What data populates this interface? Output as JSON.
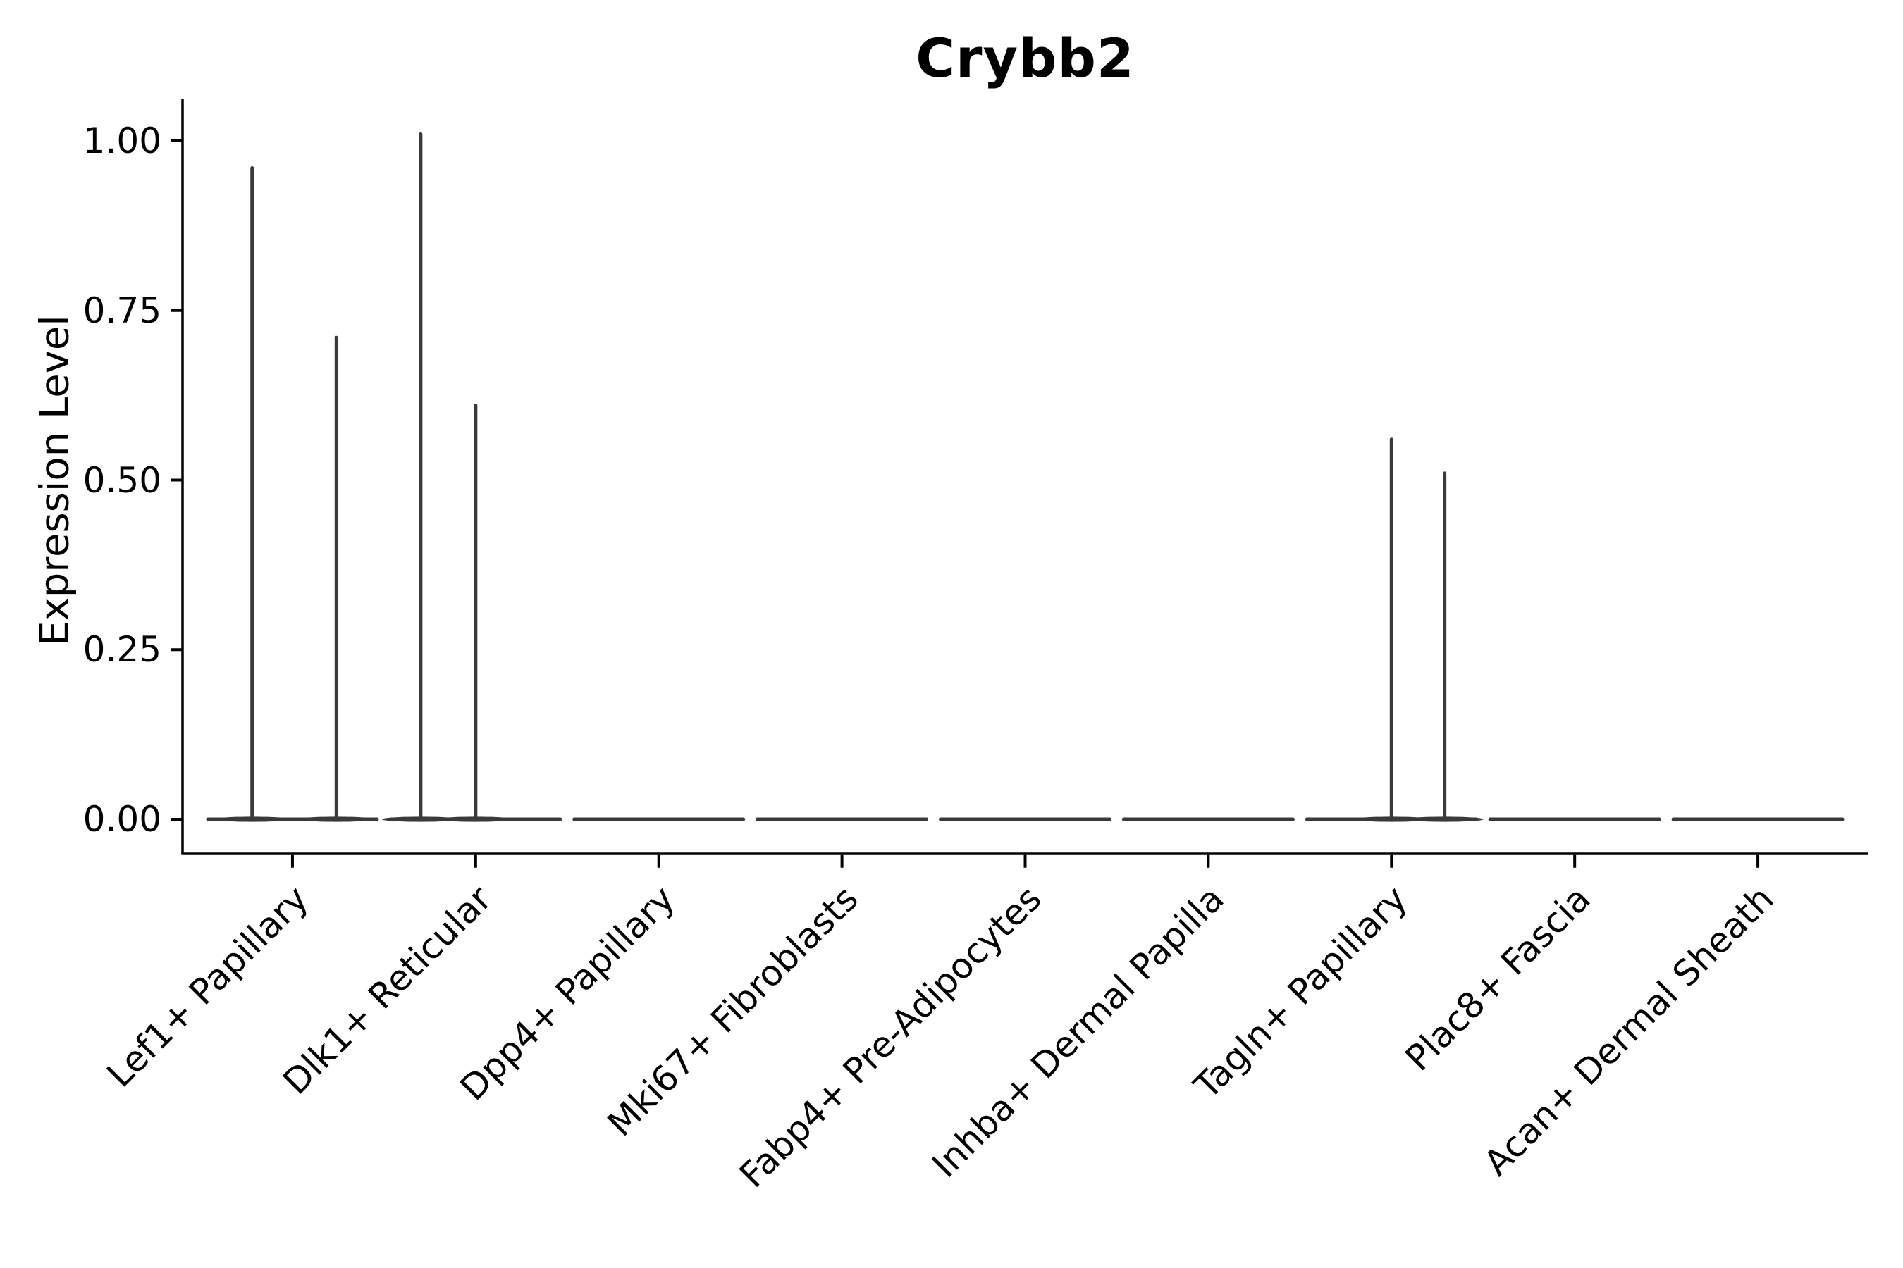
{
  "figure": {
    "title": "Crybb2",
    "y_axis_label": "Expression Level"
  },
  "chart_data": {
    "type": "violin",
    "title": "Crybb2",
    "xlabel": "",
    "ylabel": "Expression Level",
    "categories": [
      "Lef1+ Papillary",
      "Dlk1+ Reticular",
      "Dpp4+ Papillary",
      "Mki67+ Fibroblasts",
      "Fabp4+ Pre-Adipocytes",
      "Inhba+ Dermal Papilla",
      "Tagln+ Papillary",
      "Plac8+ Fascia",
      "Acan+ Dermal Sheath"
    ],
    "ytick_labels": [
      "0.00",
      "0.25",
      "0.50",
      "0.75",
      "1.00"
    ],
    "ytick_values": [
      0,
      0.25,
      0.5,
      0.75,
      1.0
    ],
    "ylim": [
      -0.05,
      1.06
    ],
    "grid": false,
    "legend": null,
    "violins": [
      {
        "category": "Lef1+ Papillary",
        "base_value": 0,
        "spikes": [
          {
            "offset": -0.22,
            "max": 0.96
          },
          {
            "offset": 0.24,
            "max": 0.71
          }
        ]
      },
      {
        "category": "Dlk1+ Reticular",
        "base_value": 0,
        "spikes": [
          {
            "offset": -0.3,
            "max": 1.01
          },
          {
            "offset": 0.0,
            "max": 0.61
          }
        ]
      },
      {
        "category": "Dpp4+ Papillary",
        "base_value": 0,
        "spikes": []
      },
      {
        "category": "Mki67+ Fibroblasts",
        "base_value": 0,
        "spikes": []
      },
      {
        "category": "Fabp4+ Pre-Adipocytes",
        "base_value": 0,
        "spikes": []
      },
      {
        "category": "Inhba+ Dermal Papilla",
        "base_value": 0,
        "spikes": []
      },
      {
        "category": "Tagln+ Papillary",
        "base_value": 0,
        "spikes": [
          {
            "offset": 0.0,
            "max": 0.56
          },
          {
            "offset": 0.29,
            "max": 0.51
          }
        ]
      },
      {
        "category": "Plac8+ Fascia",
        "base_value": 0,
        "spikes": []
      },
      {
        "category": "Acan+ Dermal Sheath",
        "base_value": 0,
        "spikes": []
      }
    ],
    "colors": {
      "violin_stroke": "#3a3a3a",
      "axis": "#000000",
      "text": "#000000",
      "background": "#ffffff"
    }
  }
}
